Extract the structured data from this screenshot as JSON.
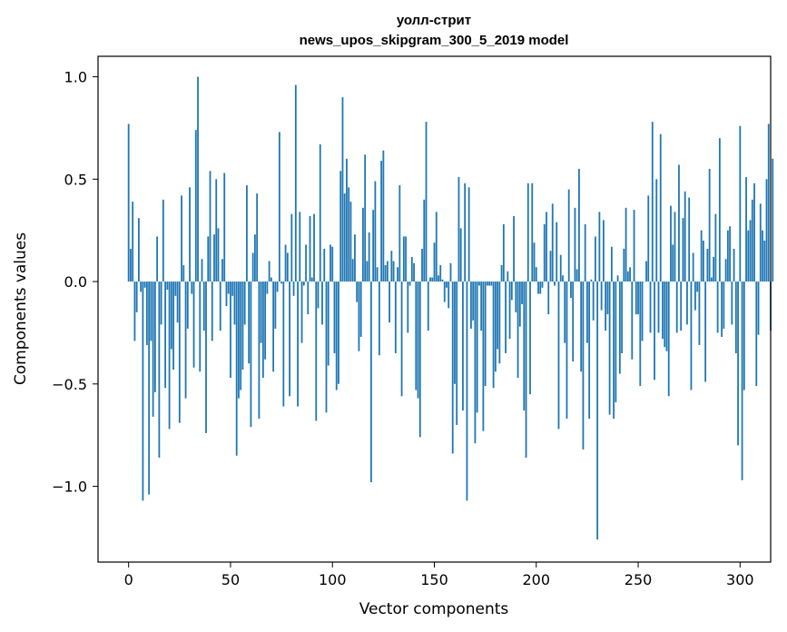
{
  "chart_data": {
    "type": "bar",
    "title": "уолл-стрит",
    "subtitle": "news_upos_skipgram_300_5_2019 model",
    "xlabel": "Vector components",
    "ylabel": "Components values",
    "xlim": [
      -15,
      315
    ],
    "ylim": [
      -1.37,
      1.1
    ],
    "xticks": [
      0,
      50,
      100,
      150,
      200,
      250,
      300
    ],
    "xtick_labels": [
      "0",
      "50",
      "100",
      "150",
      "200",
      "250",
      "300"
    ],
    "yticks": [
      -1.0,
      -0.5,
      0.0,
      0.5,
      1.0
    ],
    "ytick_labels": [
      "−1.0",
      "−0.5",
      "0.0",
      "0.5",
      "1.0"
    ],
    "grid": false,
    "bar_color": "#1f77b4",
    "values": [
      0.77,
      0.16,
      0.39,
      -0.29,
      -0.15,
      0.31,
      -0.05,
      -1.07,
      -0.03,
      -0.31,
      -1.04,
      -0.29,
      -0.66,
      -0.54,
      0.22,
      -0.86,
      -0.21,
      0.4,
      -0.52,
      -0.04,
      -0.72,
      -0.33,
      -0.43,
      -0.07,
      -0.2,
      -0.69,
      0.42,
      0.08,
      -0.57,
      -0.23,
      0.46,
      -0.06,
      -0.42,
      0.74,
      1.0,
      -0.44,
      0.11,
      -0.24,
      -0.74,
      0.22,
      0.54,
      -0.29,
      0.23,
      0.5,
      0.26,
      -0.24,
      0.11,
      0.53,
      -0.12,
      -0.06,
      -0.47,
      -0.07,
      -0.21,
      -0.85,
      -0.57,
      -0.53,
      -0.43,
      -0.21,
      0.47,
      -0.4,
      -0.71,
      0.14,
      0.23,
      0.43,
      -0.67,
      -0.3,
      -0.47,
      -0.38,
      -0.06,
      0.1,
      0.02,
      -0.44,
      -0.23,
      -0.05,
      0.73,
      -0.01,
      -0.61,
      0.18,
      0.14,
      -0.56,
      0.33,
      -0.07,
      0.96,
      -0.61,
      0.34,
      -0.3,
      -0.02,
      0.18,
      -0.16,
      0.32,
      0.02,
      0.33,
      -0.68,
      -0.13,
      0.67,
      -0.21,
      0.16,
      -0.64,
      -0.41,
      0.18,
      0.17,
      -0.35,
      -0.53,
      -0.5,
      0.54,
      0.9,
      0.43,
      0.6,
      0.46,
      0.39,
      0.11,
      0.23,
      -0.1,
      -0.34,
      -0.27,
      0.36,
      0.62,
      0.1,
      0.24,
      -0.98,
      0.35,
      0.49,
      0.07,
      -0.36,
      0.59,
      0.64,
      0.08,
      0.1,
      -0.2,
      0.15,
      0.1,
      -0.35,
      0.07,
      0.47,
      -0.56,
      0.22,
      0.22,
      -0.25,
      -0.02,
      0.12,
      0.09,
      -0.53,
      -0.57,
      -0.76,
      0.16,
      0.4,
      0.78,
      -0.24,
      0.02,
      0.02,
      0.19,
      0.34,
      0.03,
      0.08,
      0.01,
      -0.1,
      -0.03,
      -0.13,
      0.09,
      -0.84,
      -0.5,
      -0.7,
      0.51,
      0.26,
      -0.63,
      0.48,
      -1.07,
      0.46,
      -0.23,
      -0.19,
      -0.79,
      -0.64,
      -0.02,
      -0.24,
      -0.73,
      -0.51,
      -0.02,
      -0.02,
      -0.02,
      -0.52,
      -0.44,
      -0.33,
      -0.4,
      0.08,
      0.28,
      -0.35,
      0.05,
      -0.28,
      -0.09,
      0.32,
      -0.15,
      -0.47,
      -0.22,
      -0.11,
      -0.63,
      -0.86,
      0.48,
      -0.55,
      0.48,
      0.19,
      0.07,
      -0.06,
      -0.06,
      -0.03,
      0.28,
      0.34,
      -0.16,
      0.15,
      0.38,
      -0.02,
      0.29,
      -0.72,
      0.13,
      0.03,
      -0.3,
      -0.67,
      0.45,
      -0.08,
      -0.39,
      0.36,
      0.06,
      0.55,
      -0.44,
      -0.82,
      0.28,
      -0.3,
      -0.67,
      0.01,
      -0.19,
      0.22,
      -1.26,
      0.34,
      -0.14,
      0.3,
      -0.24,
      -0.16,
      -0.65,
      0.17,
      -0.67,
      -0.59,
      0.03,
      -0.45,
      -0.35,
      0.16,
      0.36,
      0.05,
      0.07,
      -0.38,
      0.35,
      -0.16,
      -0.16,
      -0.51,
      -0.29,
      0.0,
      0.1,
      0.42,
      -0.25,
      0.78,
      -0.48,
      0.5,
      -0.25,
      0.72,
      -0.28,
      -0.32,
      -0.34,
      -0.56,
      0.37,
      0.18,
      0.34,
      -0.25,
      0.57,
      -0.24,
      0.31,
      0.44,
      -0.21,
      0.41,
      -0.53,
      0.14,
      -0.14,
      -0.05,
      -0.31,
      0.25,
      0.2,
      -0.49,
      0.16,
      0.55,
      0.02,
      0.12,
      0.33,
      -0.25,
      0.7,
      -0.27,
      -0.23,
      0.11,
      0.25,
      0.27,
      -0.21,
      0.16,
      -0.35,
      -0.8,
      0.76,
      -0.97,
      -0.53,
      0.51,
      0.25,
      0.3,
      0.4,
      0.48,
      -0.51,
      -0.26,
      0.38,
      0.25,
      0.2,
      0.5,
      0.77,
      -0.24,
      0.6
    ]
  }
}
